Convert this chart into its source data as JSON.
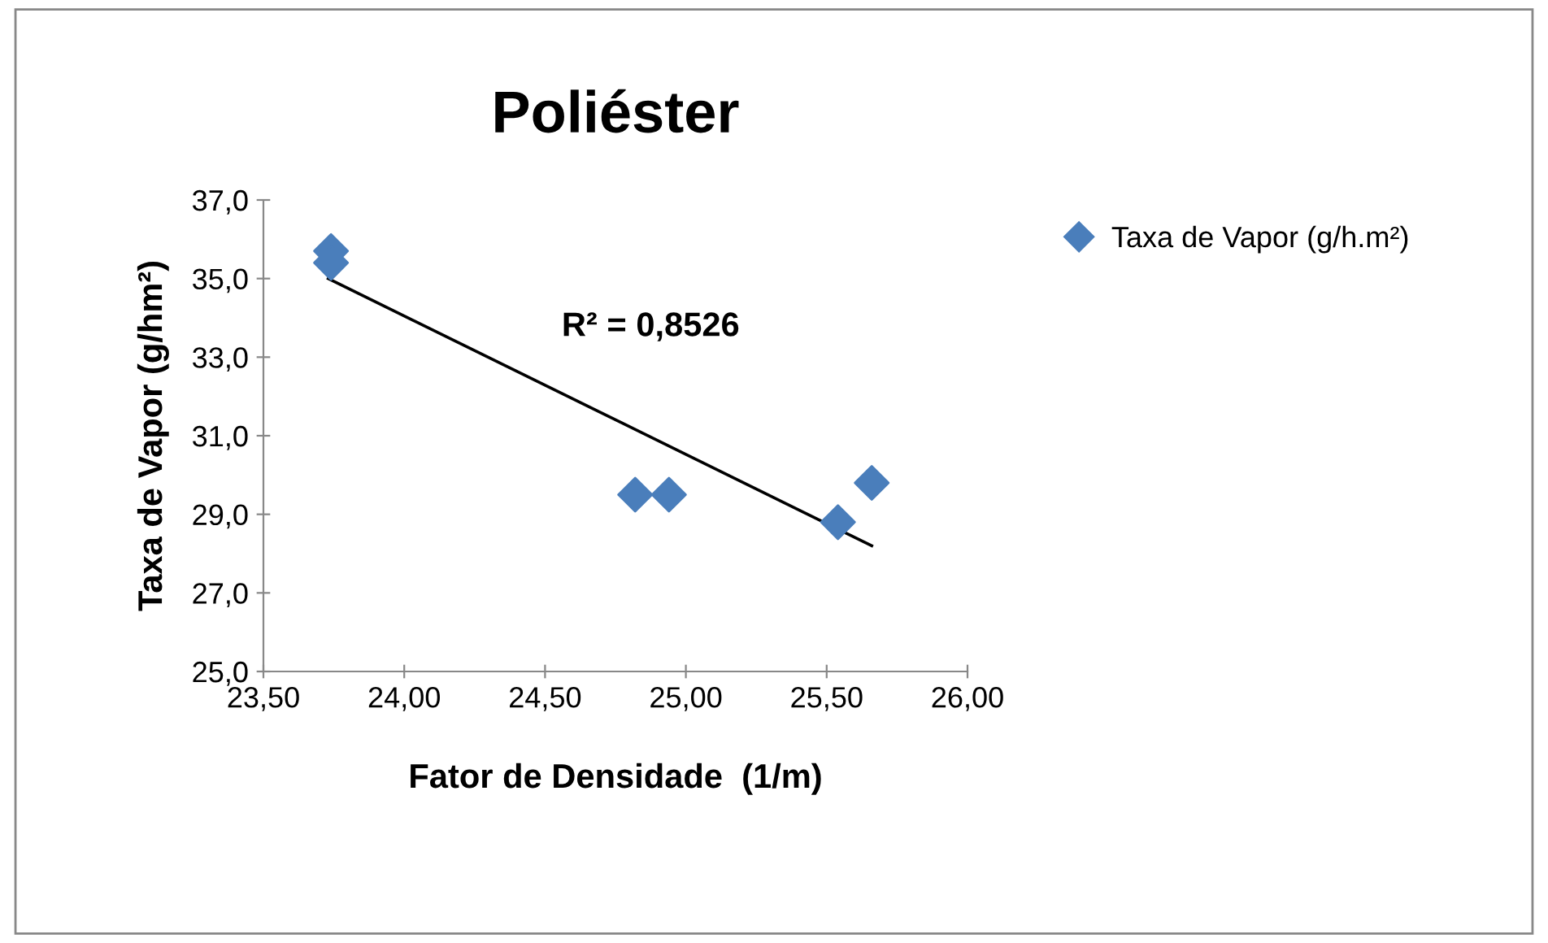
{
  "chart_data": {
    "type": "scatter",
    "title": "Poliéster",
    "xlabel": "Fator de Densidade  (1/m)",
    "ylabel": "Taxa de Vapor (g/hm²)",
    "series": [
      {
        "name": "Taxa de Vapor (g/h.m²)",
        "color": "#4a7ebb",
        "marker": "diamond",
        "x": [
          23.74,
          23.74,
          24.82,
          24.94,
          25.54,
          25.66
        ],
        "values": [
          35.7,
          35.4,
          29.5,
          29.5,
          28.8,
          29.8
        ]
      },
      {
        "type": "line",
        "color": "#000000",
        "x": [
          23.73,
          25.66
        ],
        "values": [
          35.0,
          28.2
        ]
      }
    ],
    "annotations": [
      "R² = 0,8526"
    ],
    "xlim": [
      23.5,
      26.0
    ],
    "xticks": [
      {
        "value": 23.5,
        "label": "23,50"
      },
      {
        "value": 24.0,
        "label": "24,00"
      },
      {
        "value": 24.5,
        "label": "24,50"
      },
      {
        "value": 25.0,
        "label": "25,00"
      },
      {
        "value": 25.5,
        "label": "25,50"
      },
      {
        "value": 26.0,
        "label": "26,00"
      }
    ],
    "ylim": [
      25.0,
      37.0
    ],
    "yticks": [
      {
        "value": 25,
        "label": "25,0"
      },
      {
        "value": 27,
        "label": "27,0"
      },
      {
        "value": 29,
        "label": "29,0"
      },
      {
        "value": 31,
        "label": "31,0"
      },
      {
        "value": 33,
        "label": "33,0"
      },
      {
        "value": 35,
        "label": "35,0"
      },
      {
        "value": 37,
        "label": "37,0"
      }
    ],
    "grid": false,
    "legend": "right"
  }
}
